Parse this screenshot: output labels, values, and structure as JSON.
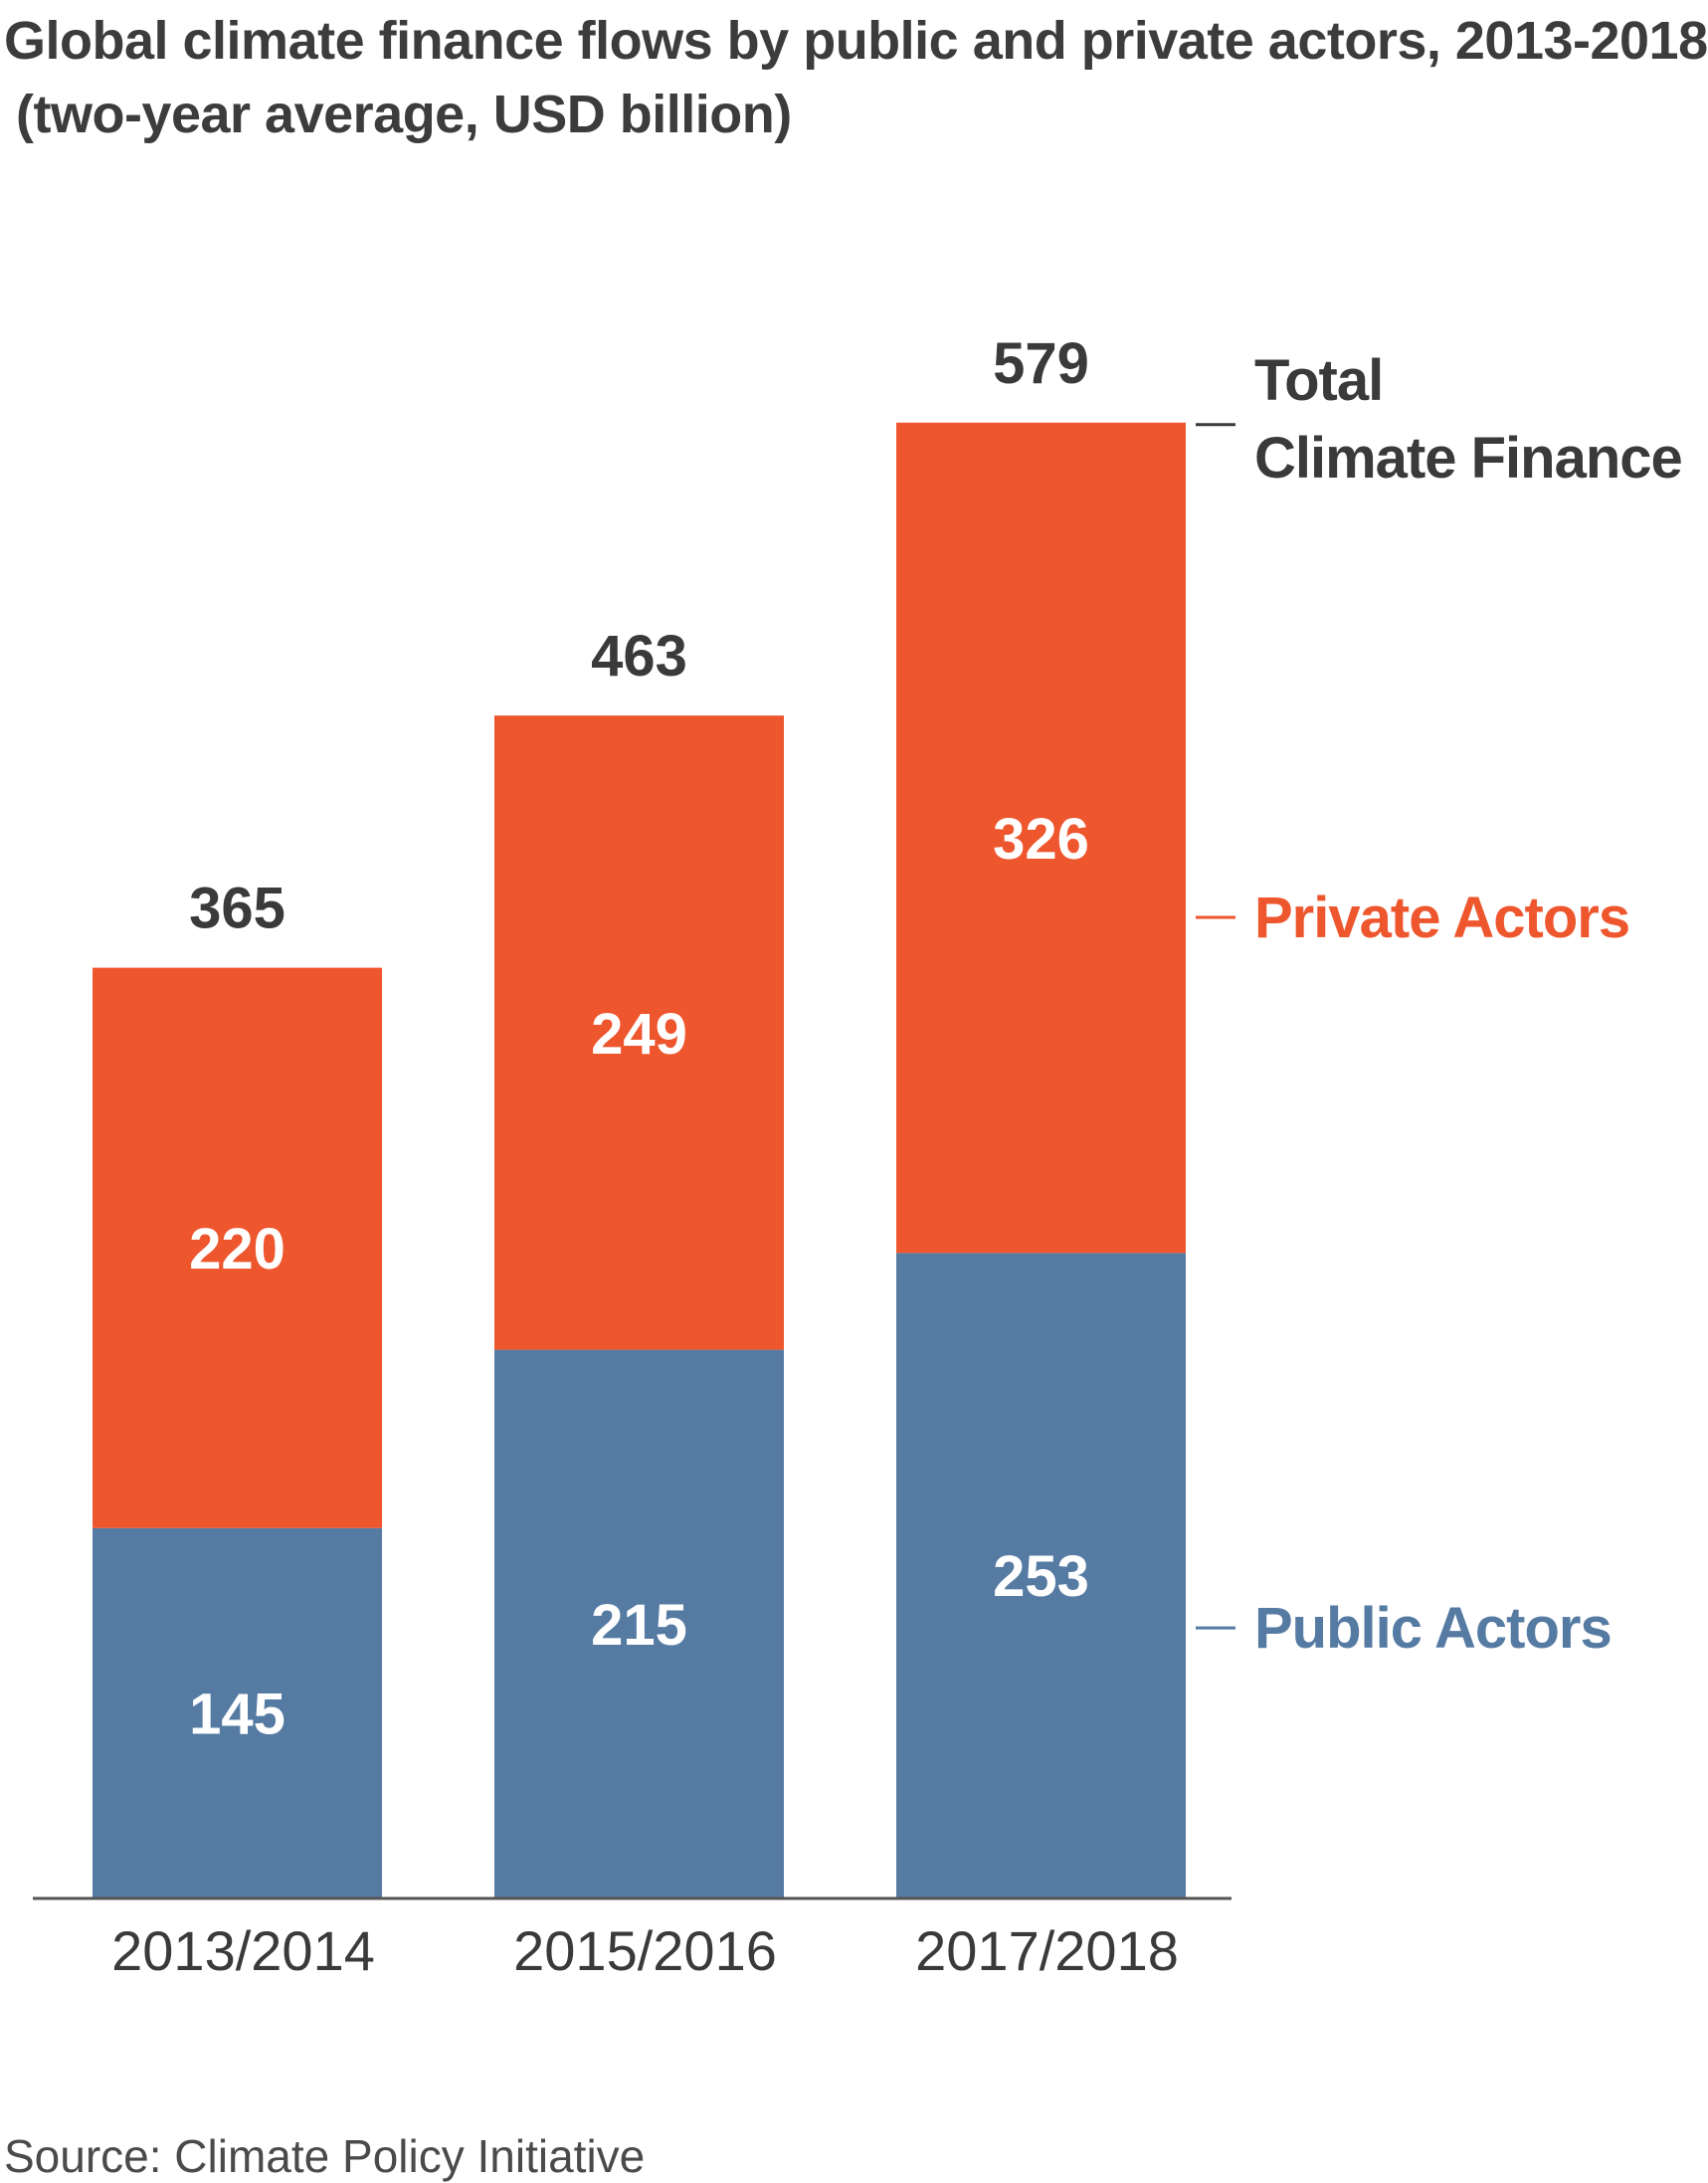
{
  "title_line1": "Global climate finance flows by public and private actors, 2013-2018",
  "title_line2": "(two-year average, USD billion)",
  "source": "Source: Climate Policy Initiative",
  "colors": {
    "private": "#ee562e",
    "public": "#567ba3",
    "total_text": "#3a3a3a",
    "axis": "#555555",
    "white": "#ffffff"
  },
  "legend": {
    "total_line1": "Total",
    "total_line2": "Climate Finance",
    "private": "Private Actors",
    "public": "Public Actors"
  },
  "chart_data": {
    "type": "bar",
    "stacked": true,
    "title": "Global climate finance flows by public and private actors, 2013-2018",
    "subtitle": "(two-year average, USD billion)",
    "categories": [
      "2013/2014",
      "2015/2016",
      "2017/2018"
    ],
    "series": [
      {
        "name": "Public Actors",
        "values": [
          145,
          215,
          253
        ]
      },
      {
        "name": "Private Actors",
        "values": [
          220,
          249,
          326
        ]
      }
    ],
    "totals": [
      365,
      463,
      579
    ],
    "legend": "right",
    "grid": false
  }
}
